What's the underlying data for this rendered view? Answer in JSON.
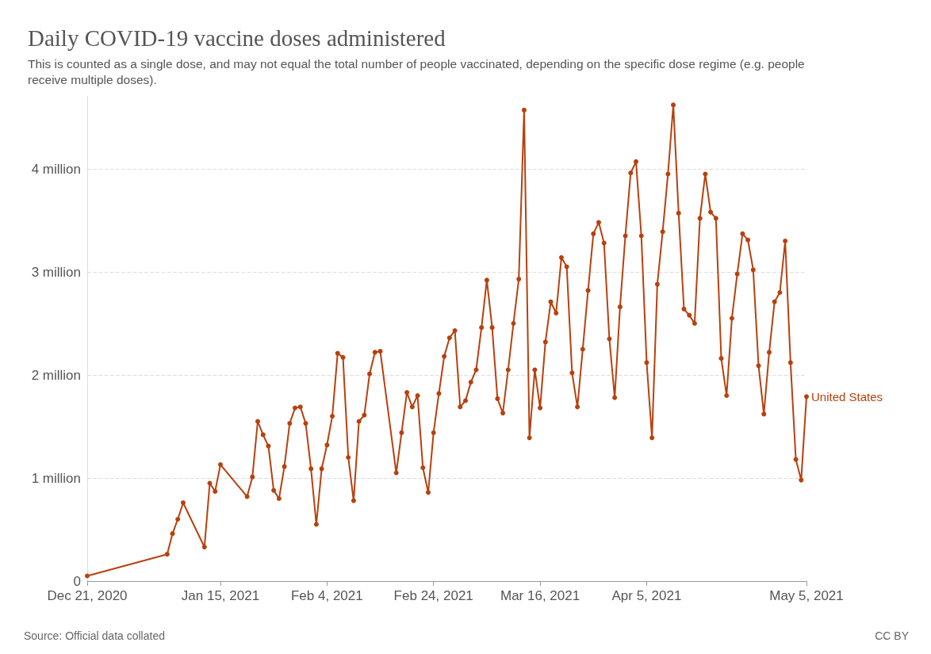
{
  "chart_data": {
    "type": "line",
    "title": "Daily COVID-19 vaccine doses administered",
    "subtitle": "This is counted as a single dose, and may not equal the total number of people vaccinated, depending on the specific dose regime (e.g. people receive multiple doses).",
    "annotations": [
      "Source: Official data collated",
      "CC BY"
    ],
    "x": [
      "2020-12-21",
      "2021-01-05",
      "2021-01-06",
      "2021-01-07",
      "2021-01-08",
      "2021-01-12",
      "2021-01-13",
      "2021-01-14",
      "2021-01-15",
      "2021-01-20",
      "2021-01-21",
      "2021-01-22",
      "2021-01-23",
      "2021-01-24",
      "2021-01-25",
      "2021-01-26",
      "2021-01-27",
      "2021-01-28",
      "2021-01-29",
      "2021-01-30",
      "2021-01-31",
      "2021-02-01",
      "2021-02-02",
      "2021-02-03",
      "2021-02-04",
      "2021-02-05",
      "2021-02-06",
      "2021-02-07",
      "2021-02-08",
      "2021-02-09",
      "2021-02-10",
      "2021-02-11",
      "2021-02-12",
      "2021-02-13",
      "2021-02-14",
      "2021-02-17",
      "2021-02-18",
      "2021-02-19",
      "2021-02-20",
      "2021-02-21",
      "2021-02-22",
      "2021-02-23",
      "2021-02-24",
      "2021-02-25",
      "2021-02-26",
      "2021-02-27",
      "2021-02-28",
      "2021-03-01",
      "2021-03-02",
      "2021-03-03",
      "2021-03-04",
      "2021-03-05",
      "2021-03-06",
      "2021-03-07",
      "2021-03-08",
      "2021-03-09",
      "2021-03-10",
      "2021-03-11",
      "2021-03-12",
      "2021-03-13",
      "2021-03-14",
      "2021-03-15",
      "2021-03-16",
      "2021-03-17",
      "2021-03-18",
      "2021-03-19",
      "2021-03-20",
      "2021-03-21",
      "2021-03-22",
      "2021-03-23",
      "2021-03-24",
      "2021-03-25",
      "2021-03-26",
      "2021-03-27",
      "2021-03-28",
      "2021-03-29",
      "2021-03-30",
      "2021-03-31",
      "2021-04-01",
      "2021-04-02",
      "2021-04-03",
      "2021-04-04",
      "2021-04-05",
      "2021-04-06",
      "2021-04-07",
      "2021-04-08",
      "2021-04-09",
      "2021-04-10",
      "2021-04-11",
      "2021-04-12",
      "2021-04-13",
      "2021-04-14",
      "2021-04-15",
      "2021-04-16",
      "2021-04-17",
      "2021-04-18",
      "2021-04-19",
      "2021-04-20",
      "2021-04-21",
      "2021-04-22",
      "2021-04-23",
      "2021-04-24",
      "2021-04-25",
      "2021-04-26",
      "2021-04-27",
      "2021-04-28",
      "2021-04-29",
      "2021-04-30",
      "2021-05-01",
      "2021-05-02",
      "2021-05-03",
      "2021-05-04",
      "2021-05-05"
    ],
    "series": [
      {
        "name": "United States",
        "color": "#b7410e",
        "values": [
          0.05,
          0.26,
          0.46,
          0.6,
          0.76,
          0.33,
          0.95,
          0.87,
          1.13,
          0.82,
          1.01,
          1.55,
          1.42,
          1.31,
          0.88,
          0.8,
          1.11,
          1.53,
          1.68,
          1.69,
          1.53,
          1.09,
          0.55,
          1.09,
          1.32,
          1.6,
          2.21,
          2.17,
          1.2,
          0.78,
          1.55,
          1.61,
          2.01,
          2.22,
          2.23,
          1.05,
          1.44,
          1.83,
          1.69,
          1.8,
          1.1,
          0.86,
          1.44,
          1.82,
          2.18,
          2.36,
          2.43,
          1.69,
          1.75,
          1.93,
          2.05,
          2.46,
          2.92,
          2.46,
          1.77,
          1.63,
          2.05,
          2.5,
          2.93,
          4.57,
          1.39,
          2.05,
          1.68,
          2.32,
          2.71,
          2.6,
          3.14,
          3.05,
          2.02,
          1.69,
          2.25,
          2.82,
          3.37,
          3.48,
          3.28,
          2.35,
          1.78,
          2.66,
          3.35,
          3.96,
          4.07,
          3.35,
          2.12,
          1.39,
          2.88,
          3.39,
          3.95,
          4.62,
          3.57,
          2.64,
          2.58,
          2.5,
          3.52,
          3.95,
          3.58,
          3.52,
          2.16,
          1.8,
          2.55,
          2.98,
          3.37,
          3.31,
          3.02,
          2.09,
          1.62,
          2.22,
          2.71,
          2.8,
          3.3,
          2.12,
          1.18,
          0.98,
          1.79
        ]
      }
    ],
    "xlim": [
      "2020-12-21",
      "2021-05-05"
    ],
    "xticks": [
      {
        "value": "2020-12-21",
        "label": "Dec 21, 2020"
      },
      {
        "value": "2021-01-15",
        "label": "Jan 15, 2021"
      },
      {
        "value": "2021-02-04",
        "label": "Feb 4, 2021"
      },
      {
        "value": "2021-02-24",
        "label": "Feb 24, 2021"
      },
      {
        "value": "2021-03-16",
        "label": "Mar 16, 2021"
      },
      {
        "value": "2021-04-05",
        "label": "Apr 5, 2021"
      },
      {
        "value": "2021-05-05",
        "label": "May 5, 2021"
      }
    ],
    "yticks": [
      0,
      {
        "value": 1,
        "label": "1 million"
      },
      {
        "value": 2,
        "label": "2 million"
      },
      {
        "value": 3,
        "label": "3 million"
      },
      {
        "value": 4,
        "label": "4 million"
      }
    ],
    "ylim": [
      0,
      4.7
    ],
    "grid": "y",
    "legend": false,
    "marker": "circle",
    "line_style": "solid"
  }
}
